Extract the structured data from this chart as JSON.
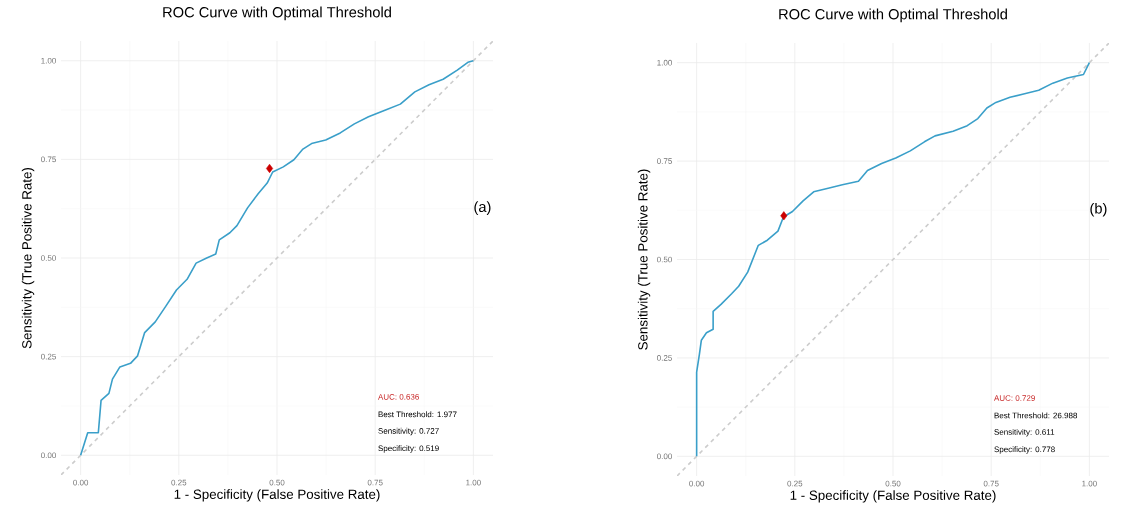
{
  "chart_data": [
    {
      "type": "line",
      "title": "ROC Curve with Optimal Threshold",
      "xlabel": "1 - Specificity (False Positive Rate)",
      "ylabel": "Sensitivity (True Positive Rate)",
      "xlim": [
        -0.05,
        1.05
      ],
      "ylim": [
        -0.05,
        1.05
      ],
      "xticks": [
        {
          "value": 0,
          "label": "0.00"
        },
        {
          "value": 0.25,
          "label": "0.25"
        },
        {
          "value": 0.5,
          "label": "0.50"
        },
        {
          "value": 0.75,
          "label": "0.75"
        },
        {
          "value": 1,
          "label": "1.00"
        }
      ],
      "yticks": [
        {
          "value": 0,
          "label": "0.00"
        },
        {
          "value": 0.25,
          "label": "0.25"
        },
        {
          "value": 0.5,
          "label": "0.50"
        },
        {
          "value": 0.75,
          "label": "0.75"
        },
        {
          "value": 1,
          "label": "1.00"
        }
      ],
      "grid": true,
      "series": [
        {
          "color": "#cccccc",
          "line_style": "dashed",
          "x": [
            -0.05,
            1.05
          ],
          "values": [
            -0.05,
            1.05
          ]
        },
        {
          "color": "#3a9fc9",
          "x": [
            0,
            0.018,
            0.045,
            0.052,
            0.072,
            0.081,
            0.1,
            0.127,
            0.145,
            0.163,
            0.19,
            0.217,
            0.244,
            0.271,
            0.294,
            0.321,
            0.344,
            0.353,
            0.38,
            0.398,
            0.425,
            0.452,
            0.475,
            0.489,
            0.516,
            0.543,
            0.566,
            0.588,
            0.624,
            0.661,
            0.697,
            0.733,
            0.778,
            0.814,
            0.851,
            0.887,
            0.923,
            0.959,
            0.986,
            1
          ],
          "values": [
            0,
            0.057,
            0.057,
            0.139,
            0.157,
            0.193,
            0.224,
            0.233,
            0.252,
            0.311,
            0.338,
            0.378,
            0.419,
            0.446,
            0.487,
            0.5,
            0.51,
            0.546,
            0.564,
            0.582,
            0.627,
            0.663,
            0.69,
            0.718,
            0.731,
            0.749,
            0.776,
            0.79,
            0.799,
            0.817,
            0.84,
            0.858,
            0.876,
            0.89,
            0.921,
            0.939,
            0.953,
            0.976,
            0.996,
            1
          ]
        },
        {
          "type": "scatter",
          "color": "#cc0000",
          "marker": "diamond",
          "x": [
            0.481
          ],
          "values": [
            0.727
          ]
        }
      ],
      "annotations": [
        "(a)",
        "AUC: 0.636",
        "Best Threshold: 1.977",
        "Sensitivity: 0.727",
        "Specificity: 0.519"
      ]
    },
    {
      "type": "line",
      "title": "ROC Curve with Optimal Threshold",
      "xlabel": "1 - Specificity (False Positive Rate)",
      "ylabel": "Sensitivity (True Positive Rate)",
      "xlim": [
        -0.05,
        1.05
      ],
      "ylim": [
        -0.05,
        1.05
      ],
      "xticks": [
        {
          "value": 0,
          "label": "0.00"
        },
        {
          "value": 0.25,
          "label": "0.25"
        },
        {
          "value": 0.5,
          "label": "0.50"
        },
        {
          "value": 0.75,
          "label": "0.75"
        },
        {
          "value": 1,
          "label": "1.00"
        }
      ],
      "yticks": [
        {
          "value": 0,
          "label": "0.00"
        },
        {
          "value": 0.25,
          "label": "0.25"
        },
        {
          "value": 0.5,
          "label": "0.50"
        },
        {
          "value": 0.75,
          "label": "0.75"
        },
        {
          "value": 1,
          "label": "1.00"
        }
      ],
      "grid": true,
      "series": [
        {
          "color": "#cccccc",
          "line_style": "dashed",
          "x": [
            -0.05,
            1.05
          ],
          "values": [
            -0.05,
            1.05
          ]
        },
        {
          "color": "#3a9fc9",
          "x": [
            0,
            0,
            0.007,
            0.012,
            0.025,
            0.042,
            0.042,
            0.062,
            0.089,
            0.107,
            0.13,
            0.157,
            0.18,
            0.207,
            0.221,
            0.244,
            0.271,
            0.298,
            0.335,
            0.371,
            0.412,
            0.435,
            0.471,
            0.507,
            0.544,
            0.58,
            0.607,
            0.653,
            0.689,
            0.716,
            0.739,
            0.762,
            0.798,
            0.835,
            0.871,
            0.907,
            0.944,
            0.985,
            1
          ],
          "values": [
            0,
            0.214,
            0.259,
            0.295,
            0.314,
            0.323,
            0.368,
            0.386,
            0.413,
            0.432,
            0.468,
            0.536,
            0.549,
            0.572,
            0.608,
            0.622,
            0.649,
            0.672,
            0.681,
            0.69,
            0.699,
            0.726,
            0.744,
            0.758,
            0.776,
            0.799,
            0.814,
            0.826,
            0.84,
            0.858,
            0.885,
            0.899,
            0.912,
            0.921,
            0.93,
            0.948,
            0.961,
            0.97,
            1
          ]
        },
        {
          "type": "scatter",
          "color": "#cc0000",
          "marker": "diamond",
          "x": [
            0.222
          ],
          "values": [
            0.611
          ]
        }
      ],
      "annotations": [
        "(b)",
        "AUC: 0.729",
        "Best Threshold: 26.988",
        "Sensitivity: 0.611",
        "Specificity: 0.778"
      ]
    }
  ]
}
